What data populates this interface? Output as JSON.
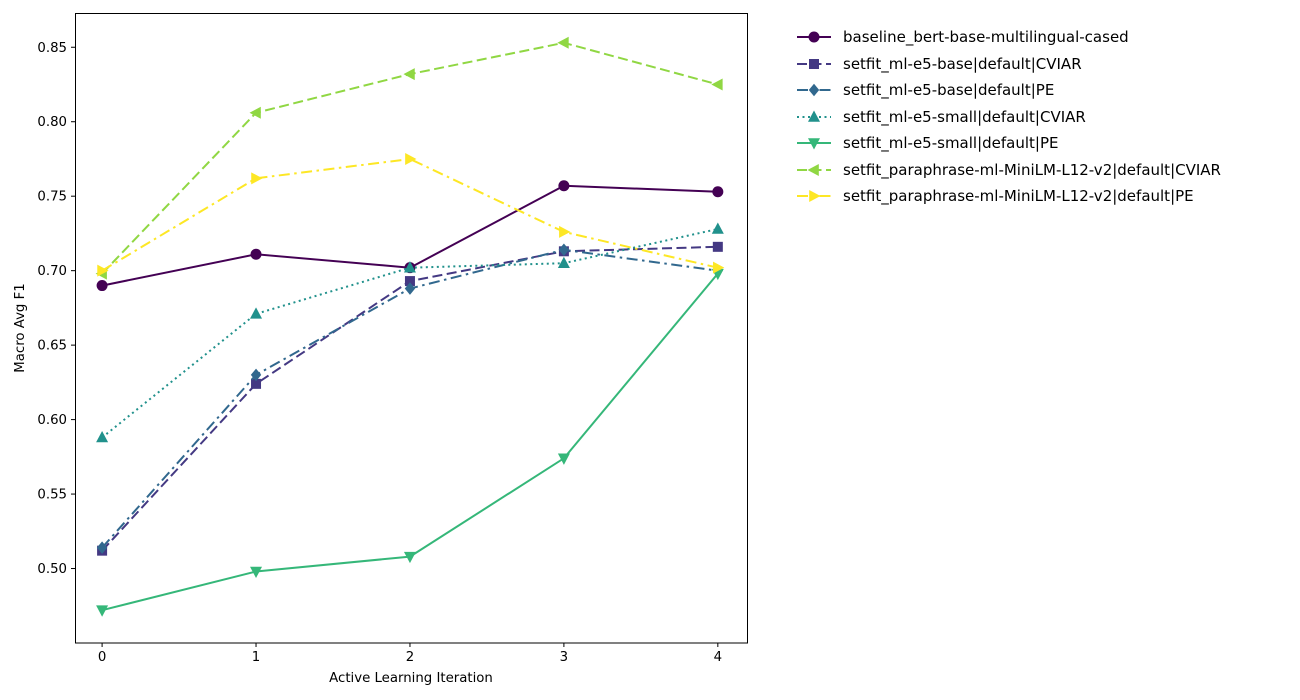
{
  "chart_data": {
    "type": "line",
    "title": "",
    "xlabel": "Active Learning Iteration",
    "ylabel": "Macro Avg F1",
    "x": [
      0,
      1,
      2,
      3,
      4
    ],
    "xlim": [
      -0.176,
      4.196
    ],
    "ylim": [
      0.45,
      0.873
    ],
    "grid": false,
    "legend_position": "outside-right",
    "xticks": {
      "values": [
        0,
        1,
        2,
        3,
        4
      ],
      "labels": [
        "0",
        "1",
        "2",
        "3",
        "4"
      ]
    },
    "yticks": {
      "values": [
        0.5,
        0.55,
        0.6,
        0.65,
        0.7,
        0.75,
        0.8,
        0.85
      ],
      "labels": [
        "0.50",
        "0.55",
        "0.60",
        "0.65",
        "0.70",
        "0.75",
        "0.80",
        "0.85"
      ]
    },
    "series": [
      {
        "name": "baseline_bert-base-multilingual-cased",
        "color": "#440154",
        "linestyle": "solid",
        "marker": "circle",
        "values": [
          0.69,
          0.711,
          0.702,
          0.757,
          0.753
        ]
      },
      {
        "name": "setfit_ml-e5-base|default|CVIAR",
        "color": "#443983",
        "linestyle": "dashed",
        "marker": "square",
        "values": [
          0.512,
          0.624,
          0.693,
          0.713,
          0.716
        ]
      },
      {
        "name": "setfit_ml-e5-base|default|PE",
        "color": "#31688e",
        "linestyle": "dashdot",
        "marker": "diamond",
        "values": [
          0.514,
          0.63,
          0.688,
          0.714,
          0.7
        ]
      },
      {
        "name": "setfit_ml-e5-small|default|CVIAR",
        "color": "#21918c",
        "linestyle": "dotted",
        "marker": "triangle-up",
        "values": [
          0.588,
          0.671,
          0.702,
          0.705,
          0.728
        ]
      },
      {
        "name": "setfit_ml-e5-small|default|PE",
        "color": "#35b779",
        "linestyle": "solid",
        "marker": "triangle-down",
        "values": [
          0.472,
          0.498,
          0.508,
          0.574,
          0.698
        ]
      },
      {
        "name": "setfit_paraphrase-ml-MiniLM-L12-v2|default|CVIAR",
        "color": "#90d743",
        "linestyle": "dashed",
        "marker": "triangle-left",
        "values": [
          0.698,
          0.806,
          0.832,
          0.853,
          0.825
        ]
      },
      {
        "name": "setfit_paraphrase-ml-MiniLM-L12-v2|default|PE",
        "color": "#fde725",
        "linestyle": "dashdot",
        "marker": "triangle-right",
        "values": [
          0.7,
          0.762,
          0.775,
          0.726,
          0.702
        ]
      }
    ]
  }
}
